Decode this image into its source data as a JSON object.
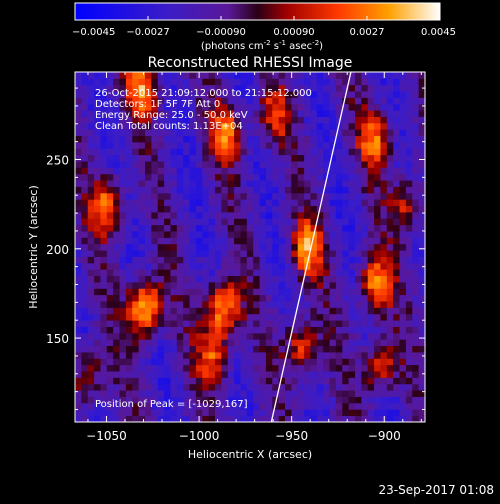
{
  "colorbar": {
    "tick_labels": [
      "-0.0045",
      "-0.0027",
      "-0.00090",
      "0.00090",
      "0.0027",
      "0.0045"
    ],
    "min": -0.0045,
    "max": 0.0045,
    "unit_label_main": "(photons cm",
    "unit_label_exp1": "-2",
    "unit_label_mid1": " s",
    "unit_label_exp2": "-1",
    "unit_label_mid2": " asec",
    "unit_label_exp3": "-2",
    "unit_label_end": ")"
  },
  "chart_data": {
    "type": "heatmap",
    "title": "Reconstructed RHESSI Image",
    "xlabel": "Heliocentric X (arcsec)",
    "ylabel": "Heliocentric Y (arcsec)",
    "xlim": [
      -1067,
      -878
    ],
    "ylim": [
      103,
      299
    ],
    "x_ticks": [
      -1050,
      -1000,
      -950,
      -900
    ],
    "y_ticks": [
      150,
      200,
      250
    ],
    "x_tick_labels": [
      "−1050",
      "−1000",
      "−950",
      "−900"
    ],
    "y_tick_labels": [
      "150",
      "200",
      "250"
    ],
    "limb_line": {
      "x_top": -918,
      "y_top": 299,
      "x_bottom": -961,
      "y_bottom": 103
    },
    "peak": {
      "x": -1029,
      "y": 167
    },
    "hotspots": [
      {
        "x": -1029,
        "y": 167,
        "value": 0.0045
      },
      {
        "x": -987,
        "y": 167,
        "value": 0.0038
      },
      {
        "x": -1050,
        "y": 225,
        "value": 0.0026
      },
      {
        "x": -1030,
        "y": 290,
        "value": 0.0024
      },
      {
        "x": -985,
        "y": 265,
        "value": 0.0022
      },
      {
        "x": -992,
        "y": 140,
        "value": 0.002
      },
      {
        "x": -942,
        "y": 200,
        "value": 0.0028
      },
      {
        "x": -945,
        "y": 145,
        "value": 0.0024
      },
      {
        "x": -905,
        "y": 180,
        "value": 0.003
      },
      {
        "x": -902,
        "y": 135,
        "value": 0.0022
      },
      {
        "x": -905,
        "y": 262,
        "value": 0.0022
      },
      {
        "x": -888,
        "y": 225,
        "value": 0.0016
      },
      {
        "x": -960,
        "y": 275,
        "value": 0.0014
      },
      {
        "x": -1060,
        "y": 130,
        "value": 0.0014
      }
    ],
    "annotations": [
      "26-Oct-2015 21:09:12.000 to 21:15:12.000",
      "Detectors: 1F 5F 7F  Att 0",
      "Energy Range: 25.0 - 50.0 keV",
      "Clean    Total counts: 1.13E+04"
    ],
    "peak_label": "Position of Peak = [-1029,167]"
  },
  "footer": {
    "timestamp": "23-Sep-2017 01:08"
  }
}
